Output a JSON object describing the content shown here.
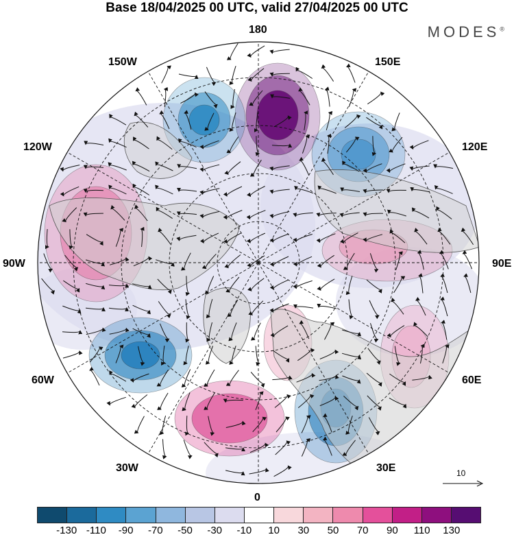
{
  "title": "Base 18/04/2025 00 UTC, valid 27/04/2025 00 UTC",
  "brand": "MODES",
  "brand_mark": "®",
  "longitudes": {
    "n180": "180",
    "e150": "150E",
    "e120": "120E",
    "e90": "90E",
    "e60": "60E",
    "e30": "30E",
    "s0": "0",
    "w30": "30W",
    "w60": "60W",
    "w90": "90W",
    "w120": "120W",
    "w150": "150W"
  },
  "vector_scale": {
    "label": "10"
  },
  "colorbar": {
    "colors": [
      "#0f4a6e",
      "#1b6a9c",
      "#2f8bc3",
      "#5ba3d2",
      "#8fb7de",
      "#b8c6e4",
      "#dcdcef",
      "#ffffff",
      "#f8d8dc",
      "#f3b4c2",
      "#ee8aad",
      "#e4509b",
      "#c21f87",
      "#8e0f7e",
      "#560d72"
    ],
    "ticks": [
      "-130",
      "-110",
      "-90",
      "-70",
      "-50",
      "-30",
      "-10",
      "10",
      "30",
      "50",
      "70",
      "90",
      "110",
      "130"
    ]
  },
  "map": {
    "type": "polar-stereographic",
    "hemisphere": "north",
    "field": "geopotential anomaly with wind vectors",
    "anomaly_centers": [
      {
        "id": "c1",
        "sign": "positive",
        "color": "#6b1479"
      },
      {
        "id": "c2",
        "sign": "negative",
        "color": "#2f8bc3"
      },
      {
        "id": "c3",
        "sign": "negative",
        "color": "#4f97cd"
      },
      {
        "id": "c4",
        "sign": "negative",
        "color": "#2a82be"
      },
      {
        "id": "c5",
        "sign": "positive",
        "color": "#e67aa8"
      },
      {
        "id": "c6",
        "sign": "positive",
        "color": "#dd4f97"
      },
      {
        "id": "c7",
        "sign": "negative",
        "color": "#2a7fbc"
      },
      {
        "id": "c8",
        "sign": "positive",
        "color": "#e894b4"
      },
      {
        "id": "c9",
        "sign": "positive",
        "color": "#ee9fc0"
      },
      {
        "id": "c10",
        "sign": "positive",
        "color": "#f0a6c2"
      }
    ]
  }
}
